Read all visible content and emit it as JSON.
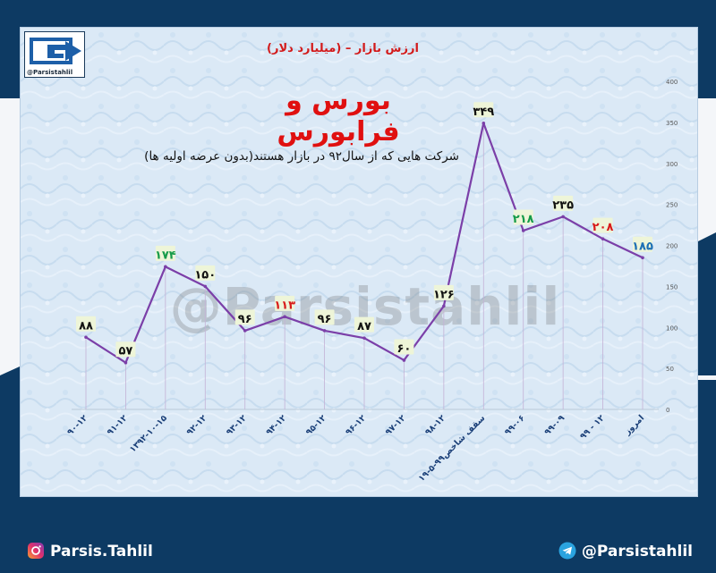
{
  "header": {
    "market_value_label": "ارزش بازار – (میلیارد دلار)",
    "title": "بورس و فرابورس",
    "note": "شرکت هایی که از سال۹۲ در بازار هستند(بدون عرضه اولیه ها)",
    "logo_handle": "@Parsistahlil"
  },
  "watermark": "@Parsistahlil",
  "footer": {
    "instagram_handle": "Parsis.Tahlil",
    "telegram_handle": "@Parsistahlil"
  },
  "colors": {
    "line": "#7b3fa8",
    "label_green": "#159a4a",
    "label_black": "#111111",
    "label_red": "#d81b1b",
    "label_blue": "#1c6fb5",
    "label_bg": "#eef5d8"
  },
  "chart_data": {
    "type": "line",
    "categories": [
      "۹۰-۱۲",
      "۹۱-۱۲",
      "۱۳۹۲-۱۰-۱۵",
      "۹۲-۱۲",
      "۹۳-۱۲",
      "۹۴-۱۲",
      "۹۵-۱۲",
      "۹۶-۱۲",
      "۹۷-۱۲",
      "۹۸-۱۲",
      "سقف شاخص۹۹-۵-۱۹",
      "۹۹-۰۶",
      "۹۹-۰۹",
      "۹۹ - ۱۲",
      "امروز"
    ],
    "values": [
      88,
      57,
      174,
      150,
      96,
      113,
      96,
      87,
      60,
      126,
      349,
      218,
      235,
      208,
      185
    ],
    "data_labels": [
      "۸۸",
      "۵۷",
      "۱۷۴",
      "۱۵۰",
      "۹۶",
      "۱۱۳",
      "۹۶",
      "۸۷",
      "۶۰",
      "۱۲۶",
      "۳۴۹",
      "۲۱۸",
      "۲۳۵",
      "۲۰۸",
      "۱۸۵"
    ],
    "label_colors": [
      "black",
      "black",
      "green",
      "black",
      "black",
      "red",
      "black",
      "black",
      "black",
      "black",
      "black",
      "green",
      "black",
      "red",
      "blue"
    ],
    "ylim": [
      0,
      400
    ],
    "yticks": [
      0,
      50,
      100,
      150,
      200,
      250,
      300,
      350,
      400
    ],
    "ytick_labels": [
      "0",
      "50",
      "100",
      "150",
      "200",
      "250",
      "300",
      "350",
      "400"
    ],
    "y_axis_position": "right",
    "grid": "vertical drop lines"
  }
}
